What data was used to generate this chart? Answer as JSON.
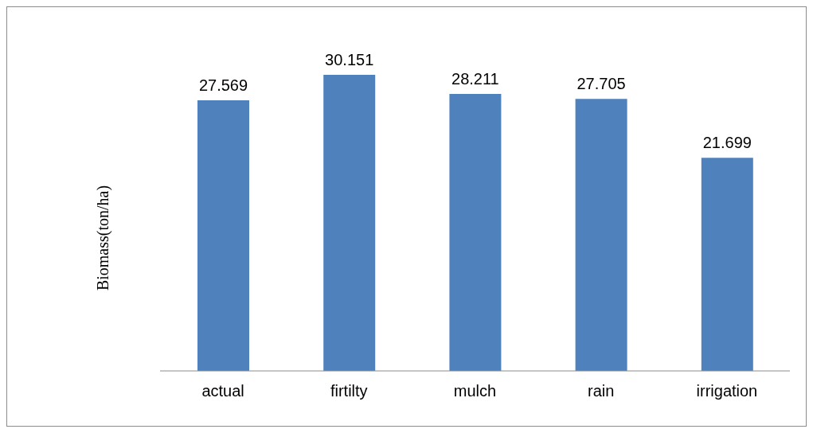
{
  "chart_data": {
    "type": "bar",
    "ylabel": "Biomass(ton/ha)",
    "categories": [
      "actual",
      "firtilty",
      "mulch",
      "rain",
      "irrigation"
    ],
    "values": [
      27.569,
      30.151,
      28.211,
      27.705,
      21.699
    ],
    "color": "#4f81bd",
    "data_labels": true,
    "grid": false,
    "legend": false
  }
}
